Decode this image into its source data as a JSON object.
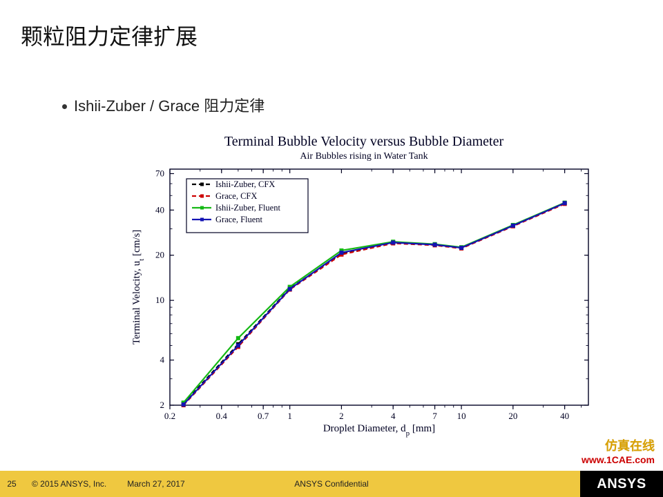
{
  "slide": {
    "title": "颗粒阻力定律扩展",
    "bullet": "Ishii-Zuber / Grace 阻力定律"
  },
  "chart": {
    "type": "line",
    "title": "Terminal Bubble Velocity versus Bubble Diameter",
    "subtitle": "Air Bubbles rising in Water Tank",
    "xlabel": "Droplet Diameter, d_p  [mm]",
    "ylabel": "Terminal Velocity, u_t  [cm/s]",
    "x_scale": "log",
    "y_scale": "log",
    "xlim": [
      0.2,
      55
    ],
    "ylim": [
      2,
      75
    ],
    "xticks": [
      0.2,
      0.4,
      0.7,
      1,
      2,
      4,
      7,
      10,
      20,
      40
    ],
    "yticks": [
      2,
      4,
      10,
      20,
      40,
      70
    ],
    "axis_color": "#000022",
    "grid_on": false,
    "background_color": "#ffffff",
    "title_fontsize": 20,
    "subtitle_fontsize": 14,
    "label_fontsize": 15,
    "tick_fontsize": 13,
    "line_width": 2.2,
    "marker_size": 5,
    "series": [
      {
        "name": "Ishii-Zuber, CFX",
        "color": "#000000",
        "marker": "square",
        "dash": "6,4",
        "x": [
          0.24,
          0.5,
          1,
          2,
          4,
          7,
          10,
          20,
          40
        ],
        "y": [
          2.05,
          5.1,
          12.0,
          20.5,
          24.3,
          23.5,
          22.4,
          31.5,
          44.5
        ]
      },
      {
        "name": "Grace, CFX",
        "color": "#cc0000",
        "marker": "square",
        "dash": "6,4",
        "x": [
          0.24,
          0.5,
          1,
          2,
          4,
          7,
          10,
          20,
          40
        ],
        "y": [
          2.0,
          4.9,
          11.8,
          20.2,
          24.0,
          23.3,
          22.2,
          31.2,
          44.0
        ]
      },
      {
        "name": "Ishii-Zuber, Fluent",
        "color": "#14b814",
        "marker": "square",
        "dash": "",
        "x": [
          0.24,
          0.5,
          1,
          2,
          4,
          7,
          10,
          20,
          40
        ],
        "y": [
          2.08,
          5.6,
          12.3,
          21.5,
          24.6,
          23.7,
          22.6,
          31.8,
          44.8
        ]
      },
      {
        "name": "Grace, Fluent",
        "color": "#1414b4",
        "marker": "square",
        "dash": "",
        "x": [
          0.24,
          0.5,
          1,
          2,
          4,
          7,
          10,
          20,
          40
        ],
        "y": [
          2.02,
          5.0,
          11.9,
          20.8,
          24.3,
          23.5,
          22.4,
          31.5,
          44.5
        ]
      }
    ],
    "legend": {
      "position": "upper-left",
      "box_stroke": "#000022",
      "text_fontsize": 12.5
    }
  },
  "footer": {
    "page": "25",
    "copyright": "© 2015 ANSYS, Inc.",
    "date": "March 27, 2017",
    "confidential": "ANSYS Confidential",
    "logo": "ANSYS",
    "bar_color": "#efc840"
  },
  "watermark": {
    "line1": "仿真在线",
    "line2": "www.1CAE.com",
    "color1": "#d9a000",
    "color2": "#cc0000"
  }
}
